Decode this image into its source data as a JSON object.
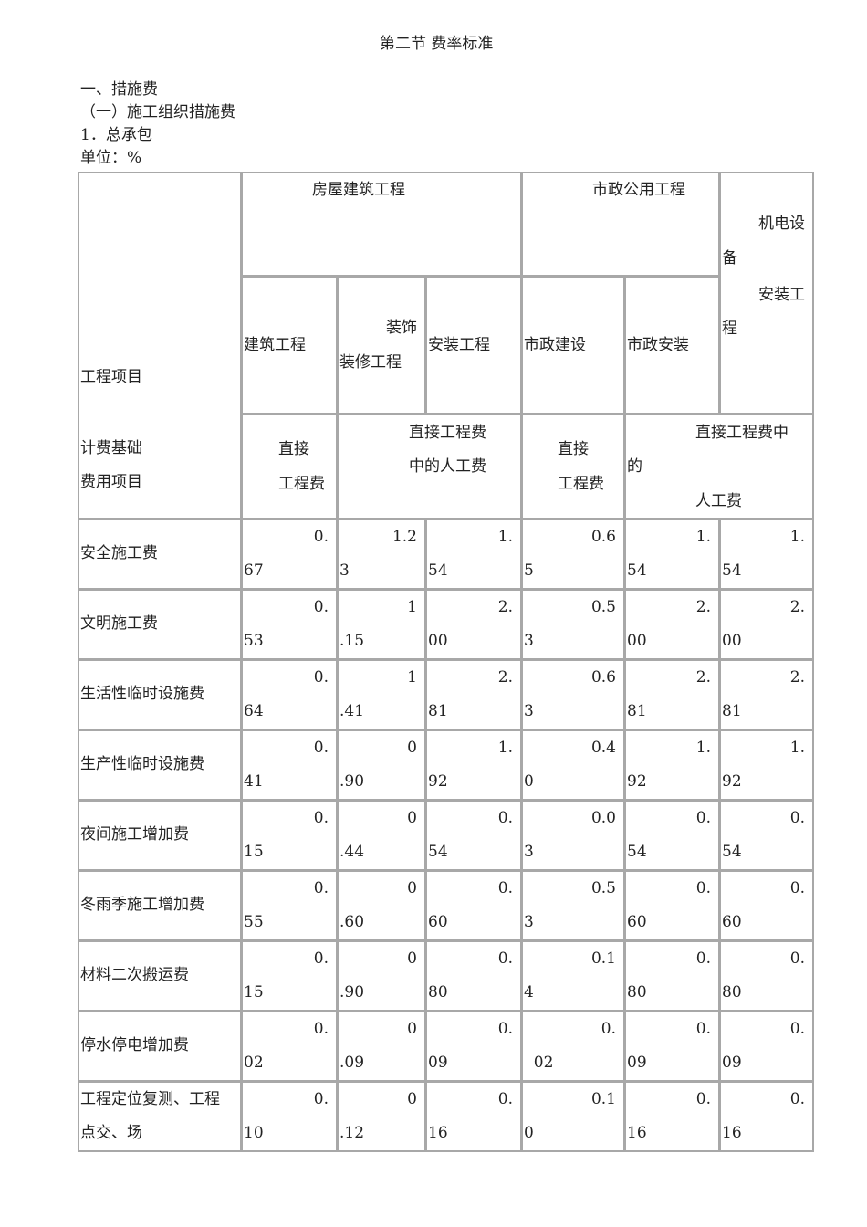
{
  "title": "第二节 费率标准",
  "headings": [
    "一、措施费",
    "（一）施工组织措施费",
    "1．总承包",
    "单位：%"
  ],
  "table": {
    "header": {
      "project_label": "工程项目",
      "basis_label": "计费基础",
      "fee_item_label": "费用项目",
      "housing": "房屋建筑工程",
      "municipal": "市政公用工程",
      "mech_elec": [
        "机电设",
        "备",
        "安装工",
        "程"
      ],
      "sub": {
        "building": "建筑工程",
        "decoration": [
          "装饰",
          "装修工程"
        ],
        "installation": "安装工程",
        "muni_build": "市政建设",
        "muni_install": "市政安装"
      },
      "basis": {
        "direct_1": [
          "直接",
          "工程费"
        ],
        "labor_1": [
          "直接工程费",
          "中的人工费"
        ],
        "direct_2": [
          "直接",
          "工程费"
        ],
        "labor_2": [
          "直接工程费中",
          "的",
          "人工费"
        ]
      }
    },
    "rows": [
      {
        "label": [
          "安全施工费"
        ],
        "cells": [
          [
            "0.",
            "67"
          ],
          [
            "1.2",
            "3"
          ],
          [
            "1.",
            "54"
          ],
          [
            "0.6",
            "5"
          ],
          [
            "1.",
            "54"
          ],
          [
            "1.",
            "54"
          ]
        ]
      },
      {
        "label": [
          "文明施工费"
        ],
        "cells": [
          [
            "0.",
            "53"
          ],
          [
            "1",
            ".15"
          ],
          [
            "2.",
            "00"
          ],
          [
            "0.5",
            "3"
          ],
          [
            "2.",
            "00"
          ],
          [
            "2.",
            "00"
          ]
        ]
      },
      {
        "label": [
          "生活性临时设施费"
        ],
        "cells": [
          [
            "0.",
            "64"
          ],
          [
            "1",
            ".41"
          ],
          [
            "2.",
            "81"
          ],
          [
            "0.6",
            "3"
          ],
          [
            "2.",
            "81"
          ],
          [
            "2.",
            "81"
          ]
        ]
      },
      {
        "label": [
          "生产性临时设施费"
        ],
        "cells": [
          [
            "0.",
            "41"
          ],
          [
            "0",
            ".90"
          ],
          [
            "1.",
            "92"
          ],
          [
            "0.4",
            "0"
          ],
          [
            "1.",
            "92"
          ],
          [
            "1.",
            "92"
          ]
        ]
      },
      {
        "label": [
          "夜间施工增加费"
        ],
        "cells": [
          [
            "0.",
            "15"
          ],
          [
            "0",
            ".44"
          ],
          [
            "0.",
            "54"
          ],
          [
            "0.0",
            "3"
          ],
          [
            "0.",
            "54"
          ],
          [
            "0.",
            "54"
          ]
        ]
      },
      {
        "label": [
          "冬雨季施工增加费"
        ],
        "cells": [
          [
            "0.",
            "55"
          ],
          [
            "0",
            ".60"
          ],
          [
            "0.",
            "60"
          ],
          [
            "0.5",
            "3"
          ],
          [
            "0.",
            "60"
          ],
          [
            "0.",
            "60"
          ]
        ]
      },
      {
        "label": [
          "材料二次搬运费"
        ],
        "cells": [
          [
            "0.",
            "15"
          ],
          [
            "0",
            ".90"
          ],
          [
            "0.",
            "80"
          ],
          [
            "0.1",
            "4"
          ],
          [
            "0.",
            "80"
          ],
          [
            "0.",
            "80"
          ]
        ]
      },
      {
        "label": [
          "停水停电增加费"
        ],
        "cells": [
          [
            "0.",
            "02"
          ],
          [
            "0",
            ".09"
          ],
          [
            "0.",
            "09"
          ],
          [
            "0.",
            "  02"
          ],
          [
            "0.",
            "09"
          ],
          [
            "0.",
            "09"
          ]
        ]
      },
      {
        "label": [
          "工程定位复测、工程",
          "点交、场"
        ],
        "cells": [
          [
            "0.",
            "10"
          ],
          [
            "0",
            ".12"
          ],
          [
            "0.",
            "16"
          ],
          [
            "0.1",
            "0"
          ],
          [
            "0.",
            "16"
          ],
          [
            "0.",
            "16"
          ]
        ]
      }
    ]
  }
}
